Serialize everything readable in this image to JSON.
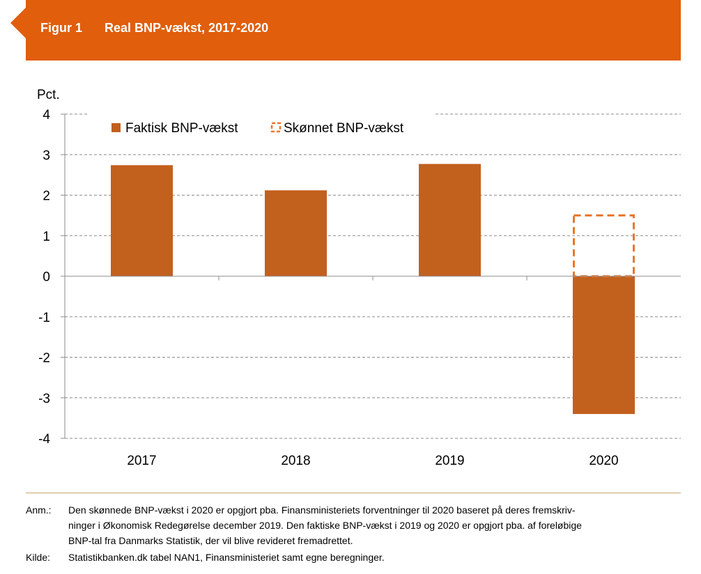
{
  "header": {
    "fig_label": "Figur 1",
    "title": "Real BNP-vækst, 2017-2020",
    "color": "#e05e0c"
  },
  "chart_data": {
    "type": "bar",
    "ylabel": "Pct.",
    "ylim": [
      -4,
      4
    ],
    "yticks": [
      "4",
      "3",
      "2",
      "1",
      "0",
      "-1",
      "-2",
      "-3",
      "-4"
    ],
    "categories": [
      "2017",
      "2018",
      "2019",
      "2020"
    ],
    "grid": true,
    "legend_position": "top",
    "series": [
      {
        "name": "Faktisk BNP-vækst",
        "style": "solid",
        "color": "#c2601e",
        "values": [
          2.74,
          2.12,
          2.77,
          -3.4
        ]
      },
      {
        "name": "Skønnet BNP-vækst",
        "style": "dashed",
        "color": "#e8762c",
        "values": [
          null,
          null,
          null,
          1.5
        ]
      }
    ]
  },
  "notes": {
    "anm_key": "Anm.:",
    "anm_line1": "Den skønnede BNP-vækst i 2020 er opgjort pba. Finansministeriets forventninger til 2020 baseret på deres fremskriv-",
    "anm_line2": "ninger i Økonomisk Redegørelse december 2019. Den faktiske BNP-vækst i 2019 og 2020 er opgjort pba. af foreløbige",
    "anm_line3": "BNP-tal fra Danmarks Statistik, der vil blive revideret fremadrettet.",
    "kilde_key": "Kilde:",
    "kilde_text": "Statistikbanken.dk tabel NAN1, Finansministeriet samt egne beregninger."
  }
}
